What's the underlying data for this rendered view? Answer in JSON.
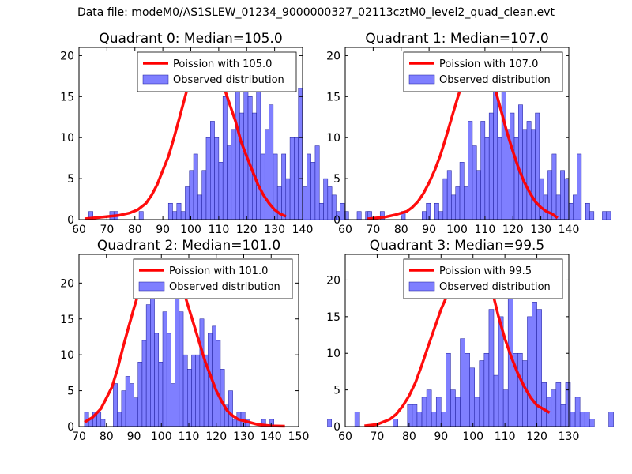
{
  "page": {
    "title": "Data file: modeM0/AS1SLEW_01234_9000000327_02113cztM0_level2_quad_clean.evt"
  },
  "colors": {
    "bar_fill": "#7f7fff",
    "bar_edge": "#1a1a99",
    "curve": "#ff0000",
    "frame": "#000000",
    "legend_edge": "#000000"
  },
  "chart_data": [
    {
      "type": "bar",
      "title": "Quadrant 0: Median=105.0",
      "xlim": [
        60,
        140
      ],
      "ylim": [
        0,
        21
      ],
      "xticks": [
        60,
        70,
        80,
        90,
        100,
        110,
        120,
        130,
        140
      ],
      "yticks": [
        0,
        5,
        10,
        15,
        20
      ],
      "bin_start": 62,
      "bin_width": 1.5,
      "values": [
        0,
        1,
        0,
        0,
        0,
        0,
        1,
        1,
        0,
        0,
        0,
        0,
        0,
        1,
        0,
        0,
        0,
        0,
        0,
        0,
        2,
        1,
        2,
        1,
        4,
        6,
        8,
        3,
        6,
        10,
        12,
        10,
        7,
        15,
        9,
        11,
        16,
        13,
        17,
        15,
        13,
        17,
        8,
        11,
        14,
        8,
        4,
        8,
        5,
        10,
        10,
        16,
        4,
        8,
        7,
        9,
        2,
        5,
        4,
        3,
        1,
        2,
        1,
        0,
        0,
        1,
        0,
        1
      ],
      "curve": {
        "x": [
          62,
          74,
          78,
          81,
          84,
          86,
          88,
          90,
          92,
          94,
          96,
          98,
          100,
          102,
          104,
          106,
          108,
          110,
          112,
          114,
          116,
          118,
          120,
          122,
          124,
          126,
          128,
          130,
          132,
          134
        ],
        "y": [
          0.1,
          0.5,
          0.8,
          1.2,
          2.0,
          3.0,
          4.3,
          6.0,
          7.7,
          10.0,
          12.5,
          15.0,
          17.5,
          18.8,
          20.0,
          19.8,
          19.0,
          17.6,
          16.0,
          14.0,
          12.0,
          9.5,
          7.7,
          6.0,
          4.3,
          3.0,
          2.0,
          1.2,
          0.7,
          0.4
        ]
      },
      "legend": [
        "Poission with 105.0",
        "Observed distribution"
      ]
    },
    {
      "type": "bar",
      "title": "Quadrant 1: Median=107.0",
      "xlim": [
        60,
        140
      ],
      "ylim": [
        0,
        21
      ],
      "xticks": [
        60,
        70,
        80,
        90,
        100,
        110,
        120,
        130,
        140
      ],
      "yticks": [
        0,
        5,
        10,
        15,
        20
      ],
      "bin_start": 68,
      "bin_width": 1.5,
      "values": [
        1,
        0,
        0,
        1,
        0,
        0,
        0,
        0,
        1,
        0,
        0,
        0,
        0,
        1,
        2,
        0,
        2,
        1,
        5,
        6,
        3,
        4,
        7,
        4,
        12,
        9,
        6,
        12,
        10,
        13,
        16,
        10,
        18,
        11,
        13,
        10,
        14,
        11,
        12,
        11,
        13,
        5,
        3,
        6,
        8,
        3,
        6,
        5,
        2,
        3,
        8,
        0,
        2,
        1,
        0,
        0,
        1,
        1
      ],
      "curve": {
        "x": [
          68,
          74,
          78,
          82,
          84,
          86,
          88,
          90,
          92,
          94,
          96,
          98,
          100,
          102,
          104,
          106,
          108,
          110,
          112,
          114,
          116,
          118,
          120,
          122,
          124,
          126,
          128,
          130,
          132,
          134,
          136
        ],
        "y": [
          0.1,
          0.3,
          0.6,
          1.0,
          1.5,
          2.2,
          3.2,
          4.5,
          6.0,
          7.8,
          10.0,
          12.3,
          14.6,
          16.8,
          18.6,
          19.8,
          20.0,
          19.6,
          18.4,
          15.5,
          13.0,
          10.5,
          8.3,
          6.3,
          4.6,
          3.3,
          2.2,
          1.5,
          1.0,
          0.7,
          0.2
        ]
      },
      "legend": [
        "Poission with 107.0",
        "Observed distribution"
      ]
    },
    {
      "type": "bar",
      "title": "Quadrant 2: Median=101.0",
      "xlim": [
        70,
        150
      ],
      "ylim": [
        0,
        24
      ],
      "xticks": [
        70,
        80,
        90,
        100,
        110,
        120,
        130,
        140,
        150
      ],
      "yticks": [
        0,
        5,
        10,
        15,
        20
      ],
      "bin_start": 72,
      "bin_width": 1.5,
      "values": [
        2,
        1,
        2,
        2,
        1,
        0,
        0,
        6,
        2,
        5,
        7,
        6,
        4,
        9,
        12,
        17,
        19,
        13,
        9,
        16,
        13,
        6,
        19,
        16,
        10,
        8,
        10,
        10,
        15,
        10,
        13,
        14,
        12,
        8,
        3,
        5,
        1,
        2,
        2,
        1,
        0,
        0,
        0,
        1,
        0,
        1,
        0,
        0,
        0,
        0,
        0,
        0,
        0,
        0,
        0,
        0,
        0,
        0,
        0,
        1
      ],
      "curve": {
        "x": [
          72,
          75,
          78,
          80,
          82,
          84,
          86,
          88,
          90,
          92,
          94,
          96,
          98,
          100,
          102,
          104,
          106,
          108,
          110,
          112,
          114,
          116,
          118,
          120,
          122,
          124,
          126,
          128,
          130,
          132,
          135,
          140,
          145
        ],
        "y": [
          0.6,
          1.3,
          2.5,
          4.0,
          5.5,
          8.0,
          11.0,
          13.8,
          16.5,
          19.0,
          20.7,
          22.0,
          22.7,
          23.0,
          22.7,
          22.0,
          20.7,
          19.0,
          16.5,
          14.0,
          11.5,
          9.0,
          7.0,
          5.0,
          3.5,
          2.2,
          1.5,
          1.0,
          0.8,
          0.6,
          0.3,
          0.1,
          0.05
        ]
      },
      "legend": [
        "Poission with 101.0",
        "Observed distribution"
      ]
    },
    {
      "type": "bar",
      "title": "Quadrant 3: Median=99.5",
      "xlim": [
        60,
        130
      ],
      "ylim": [
        0,
        23.5
      ],
      "xticks": [
        60,
        70,
        80,
        90,
        100,
        110,
        120,
        130
      ],
      "yticks": [
        0,
        5,
        10,
        15,
        20
      ],
      "bin_start": 63,
      "bin_width": 1.5,
      "values": [
        2,
        0,
        0,
        0,
        0,
        0,
        0,
        0,
        1,
        0,
        0,
        3,
        3,
        2,
        4,
        5,
        2,
        4,
        2,
        10,
        5,
        4,
        12,
        10,
        8,
        4,
        9,
        10,
        16,
        7,
        15,
        5,
        20,
        10,
        10,
        9,
        15,
        17,
        16,
        6,
        4,
        5,
        6,
        3,
        6,
        2,
        4,
        2,
        2,
        1,
        0,
        0,
        0,
        2
      ],
      "curve": {
        "x": [
          66,
          70,
          74,
          76,
          78,
          80,
          82,
          84,
          86,
          88,
          90,
          92,
          94,
          96,
          98,
          100,
          102,
          104,
          106,
          108,
          110,
          112,
          114,
          116,
          118,
          120,
          124
        ],
        "y": [
          0.1,
          0.3,
          1.0,
          1.7,
          2.8,
          4.2,
          6.0,
          8.4,
          11.0,
          13.5,
          16.0,
          18.0,
          19.8,
          21.0,
          21.8,
          22.0,
          21.3,
          20.2,
          18.5,
          15.0,
          12.0,
          9.5,
          7.3,
          5.5,
          4.0,
          2.9,
          1.9
        ]
      },
      "legend": [
        "Poission with 99.5",
        "Observed distribution"
      ]
    }
  ]
}
